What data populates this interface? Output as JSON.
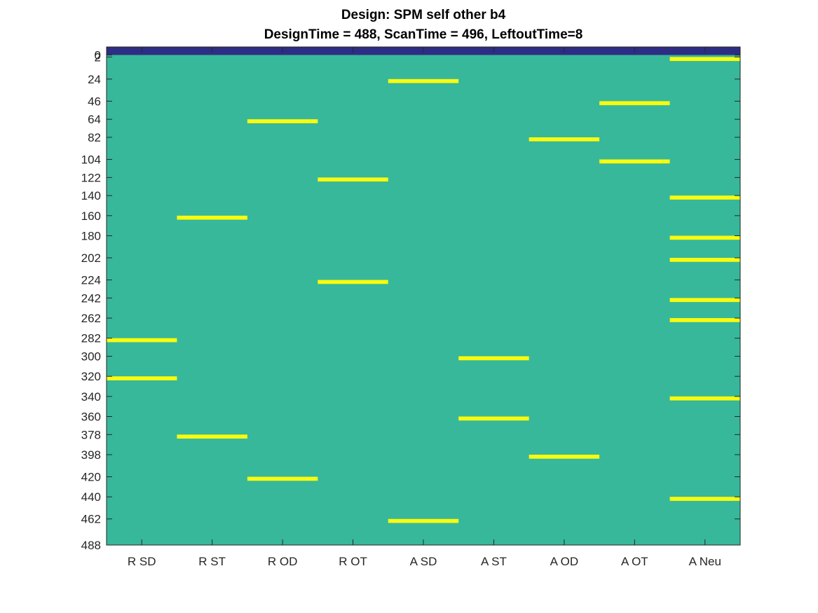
{
  "chart_data": {
    "type": "heatmap",
    "title": "Design: SPM self other b4",
    "subtitle": "DesignTime = 488, ScanTime = 496, LeftoutTime=8",
    "xlabel": "",
    "ylabel": "",
    "categories": [
      "R SD",
      "R ST",
      "R OD",
      "R OT",
      "A SD",
      "A ST",
      "A OD",
      "A OT",
      "A Neu"
    ],
    "ylim": [
      -8,
      488
    ],
    "y_direction": "reversed",
    "yticks": [
      0,
      2,
      24,
      46,
      64,
      82,
      104,
      122,
      140,
      160,
      180,
      202,
      224,
      242,
      262,
      282,
      300,
      320,
      340,
      360,
      378,
      398,
      420,
      440,
      462,
      488
    ],
    "leftout_range": [
      -8,
      0
    ],
    "block_duration": 4,
    "colors": {
      "leftout": "#2d2d84",
      "background": "#37b89a",
      "event": "#f9fb0e"
    },
    "events": [
      {
        "category": "R SD",
        "onsets": [
          282,
          320
        ]
      },
      {
        "category": "R ST",
        "onsets": [
          160,
          378
        ]
      },
      {
        "category": "R OD",
        "onsets": [
          64,
          420
        ]
      },
      {
        "category": "R OT",
        "onsets": [
          122,
          224
        ]
      },
      {
        "category": "A SD",
        "onsets": [
          24,
          462
        ]
      },
      {
        "category": "A ST",
        "onsets": [
          300,
          360
        ]
      },
      {
        "category": "A OD",
        "onsets": [
          82,
          398
        ]
      },
      {
        "category": "A OT",
        "onsets": [
          46,
          104
        ]
      },
      {
        "category": "A Neu",
        "onsets": [
          2,
          140,
          180,
          202,
          242,
          262,
          340,
          440
        ]
      }
    ]
  }
}
